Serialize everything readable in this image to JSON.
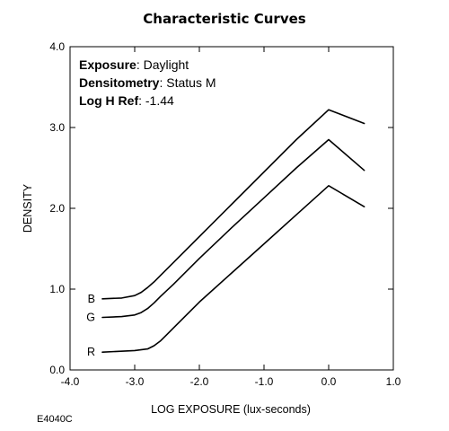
{
  "chart_data": {
    "type": "line",
    "title": "Characteristic Curves",
    "xlabel": "LOG EXPOSURE (lux-seconds)",
    "ylabel": "DENSITY",
    "xlim": [
      -4.0,
      1.0
    ],
    "ylim": [
      0.0,
      4.0
    ],
    "x_ticks": [
      "-4.0",
      "-3.0",
      "-2.0",
      "-1.0",
      "0.0",
      "1.0"
    ],
    "y_ticks": [
      "0.0",
      "1.0",
      "2.0",
      "3.0",
      "4.0"
    ],
    "grid": false,
    "annotations": [
      {
        "key": "Exposure",
        "value": ": Daylight"
      },
      {
        "key": "Densitometry",
        "value": ": Status M"
      },
      {
        "key": "Log H Ref",
        "value": ": -1.44"
      }
    ],
    "series": [
      {
        "name": "B",
        "color": "#000000",
        "x": [
          -3.5,
          -3.2,
          -3.0,
          -2.9,
          -2.8,
          -2.7,
          -2.6,
          -2.4,
          -2.0,
          -1.5,
          -1.0,
          -0.5,
          0.0,
          0.55
        ],
        "y": [
          0.88,
          0.89,
          0.92,
          0.96,
          1.02,
          1.09,
          1.17,
          1.33,
          1.65,
          2.05,
          2.45,
          2.85,
          3.22,
          3.05
        ]
      },
      {
        "name": "G",
        "color": "#000000",
        "x": [
          -3.5,
          -3.2,
          -3.0,
          -2.9,
          -2.8,
          -2.7,
          -2.6,
          -2.4,
          -2.0,
          -1.5,
          -1.0,
          -0.5,
          0.0,
          0.55
        ],
        "y": [
          0.65,
          0.66,
          0.68,
          0.71,
          0.76,
          0.83,
          0.91,
          1.06,
          1.38,
          1.76,
          2.13,
          2.5,
          2.85,
          2.47
        ]
      },
      {
        "name": "R",
        "color": "#000000",
        "x": [
          -3.5,
          -3.0,
          -2.8,
          -2.7,
          -2.6,
          -2.5,
          -2.4,
          -2.2,
          -2.0,
          -1.5,
          -1.0,
          -0.5,
          0.0,
          0.55
        ],
        "y": [
          0.22,
          0.24,
          0.26,
          0.3,
          0.36,
          0.44,
          0.52,
          0.68,
          0.84,
          1.2,
          1.56,
          1.92,
          2.28,
          2.02
        ]
      }
    ]
  },
  "figure_code": "E4040C"
}
